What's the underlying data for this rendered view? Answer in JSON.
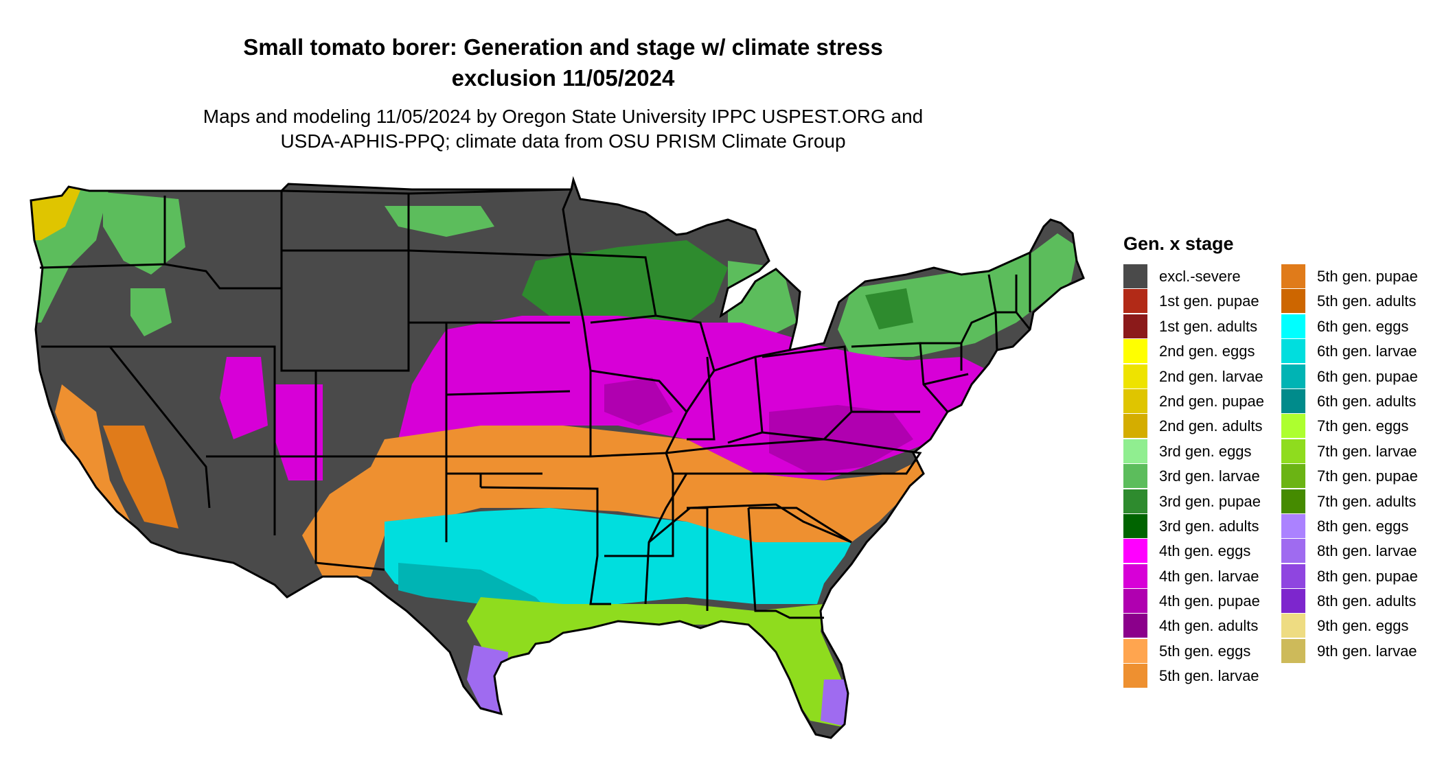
{
  "title_line1": "Small tomato borer: Generation and stage w/ climate stress",
  "title_line2": "exclusion 11/05/2024",
  "subtitle_line1": "Maps and modeling 11/05/2024 by Oregon State University IPPC USPEST.ORG and",
  "subtitle_line2": "USDA-APHIS-PPQ; climate data from OSU PRISM Climate Group",
  "legend": {
    "title": "Gen. x stage",
    "col1": [
      {
        "label": "excl.-severe",
        "color": "#4a4a4a"
      },
      {
        "label": "1st gen. pupae",
        "color": "#b22a17"
      },
      {
        "label": "1st gen. adults",
        "color": "#8b1a1a"
      },
      {
        "label": "2nd gen. eggs",
        "color": "#ffff00"
      },
      {
        "label": "2nd gen. larvae",
        "color": "#eee300"
      },
      {
        "label": "2nd gen. pupae",
        "color": "#dfc500"
      },
      {
        "label": "2nd gen. adults",
        "color": "#d4ad00"
      },
      {
        "label": "3rd gen. eggs",
        "color": "#90ee90"
      },
      {
        "label": "3rd gen. larvae",
        "color": "#5cbd5c"
      },
      {
        "label": "3rd gen. pupae",
        "color": "#2e8b2e"
      },
      {
        "label": "3rd gen. adults",
        "color": "#006400"
      },
      {
        "label": "4th gen. eggs",
        "color": "#ff00ff"
      },
      {
        "label": "4th gen. larvae",
        "color": "#d700d7"
      },
      {
        "label": "4th gen. pupae",
        "color": "#b000b0"
      },
      {
        "label": "4th gen. adults",
        "color": "#8b008b"
      },
      {
        "label": "5th gen. eggs",
        "color": "#ffa54f"
      },
      {
        "label": "5th gen. larvae",
        "color": "#ee9030"
      }
    ],
    "col2": [
      {
        "label": "5th gen. pupae",
        "color": "#e07b1a"
      },
      {
        "label": "5th gen. adults",
        "color": "#cd6600"
      },
      {
        "label": "6th gen. eggs",
        "color": "#00ffff"
      },
      {
        "label": "6th gen. larvae",
        "color": "#00dede"
      },
      {
        "label": "6th gen. pupae",
        "color": "#00b4b4"
      },
      {
        "label": "6th gen. adults",
        "color": "#008b8b"
      },
      {
        "label": "7th gen. eggs",
        "color": "#adff2f"
      },
      {
        "label": "7th gen. larvae",
        "color": "#8fdc1e"
      },
      {
        "label": "7th gen. pupae",
        "color": "#6bb414"
      },
      {
        "label": "7th gen. adults",
        "color": "#458b00"
      },
      {
        "label": "8th gen. eggs",
        "color": "#ab82ff"
      },
      {
        "label": "8th gen. larvae",
        "color": "#9f6bf0"
      },
      {
        "label": "8th gen. pupae",
        "color": "#8f45e0"
      },
      {
        "label": "8th gen. adults",
        "color": "#7d26cd"
      },
      {
        "label": "9th gen. eggs",
        "color": "#eedc82"
      },
      {
        "label": "9th gen. larvae",
        "color": "#cdba5a"
      }
    ]
  }
}
